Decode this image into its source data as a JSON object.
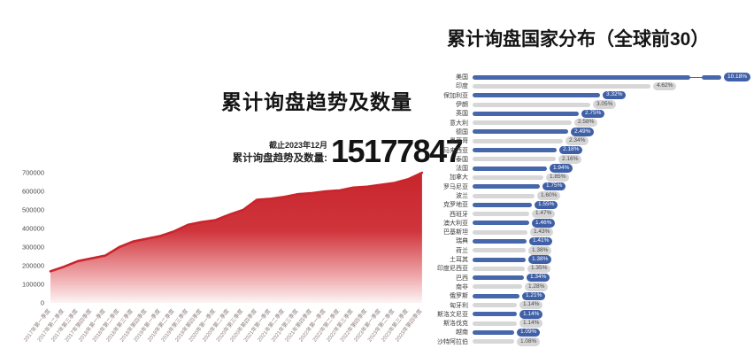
{
  "page": {
    "background": "#ffffff"
  },
  "left_chart": {
    "title": "累计询盘趋势及数量",
    "asof": "截止2023年12月",
    "total_label": "累计询盘趋势及数量:",
    "total_value": "15177847",
    "line_color": "#c9252c",
    "axis_text_color": "#4a4a4a",
    "x_label_color": "#917f7f"
  },
  "right_chart": {
    "title": "累计询盘国家分布（全球前30）",
    "bar_color_primary": "#4767ab",
    "bar_color_secondary": "#d7d7d7"
  },
  "chart_data": [
    {
      "type": "area",
      "title": "累计询盘趋势及数量",
      "x": [
        "2017年第一季度",
        "2017年第二季度",
        "2017年第三季度",
        "2017年第四季度",
        "2018年第一季度",
        "2018年第二季度",
        "2018年第三季度",
        "2018年第四季度",
        "2019年第一季度",
        "2019年第二季度",
        "2019年第三季度",
        "2019年第四季度",
        "2020年第一季度",
        "2020年第二季度",
        "2020年第三季度",
        "2020年第四季度",
        "2021年第一季度",
        "2021年第二季度",
        "2021年第三季度",
        "2021年第四季度",
        "2022年第一季度",
        "2022年第二季度",
        "2022年第三季度",
        "2022年第四季度",
        "2023年第一季度",
        "2023年第二季度",
        "2023年第三季度",
        "2023年第四季度"
      ],
      "values": [
        170000,
        195000,
        225000,
        240000,
        255000,
        300000,
        330000,
        345000,
        360000,
        385000,
        420000,
        435000,
        445000,
        475000,
        500000,
        555000,
        560000,
        570000,
        585000,
        590000,
        600000,
        605000,
        620000,
        625000,
        635000,
        645000,
        665000,
        700000
      ],
      "ylim": [
        0,
        700000
      ],
      "yticks": [
        0,
        100000,
        200000,
        300000,
        400000,
        500000,
        600000,
        700000
      ],
      "grid": false,
      "legend": false,
      "line_color": "#c9252c",
      "fill": "vertical gradient red to white"
    },
    {
      "type": "bar",
      "orientation": "horizontal",
      "title": "累计询盘国家分布（全球前30）",
      "categories": [
        "美国",
        "印度",
        "保加利亚",
        "伊朗",
        "英国",
        "意大利",
        "德国",
        "墨西哥",
        "马来西亚",
        "泰国",
        "法国",
        "加拿大",
        "罗马尼亚",
        "波兰",
        "克罗地亚",
        "西班牙",
        "澳大利亚",
        "巴基斯坦",
        "瑞典",
        "荷兰",
        "土耳其",
        "印度尼西亚",
        "巴西",
        "南非",
        "俄罗斯",
        "匈牙利",
        "斯洛文尼亚",
        "斯洛伐克",
        "越南",
        "沙特阿拉伯"
      ],
      "values": [
        10.18,
        4.62,
        3.32,
        3.05,
        2.75,
        2.58,
        2.49,
        2.34,
        2.18,
        2.16,
        1.94,
        1.85,
        1.75,
        1.6,
        1.55,
        1.47,
        1.46,
        1.43,
        1.41,
        1.38,
        1.38,
        1.35,
        1.34,
        1.28,
        1.21,
        1.14,
        1.14,
        1.14,
        1.09,
        1.08
      ],
      "labels": [
        "10.18%",
        "4.62%",
        "3.32%",
        "3.05%",
        "2.75%",
        "2.58%",
        "2.49%",
        "2.34%",
        "2.18%",
        "2.16%",
        "1.94%",
        "1.85%",
        "1.75%",
        "1.60%",
        "1.55%",
        "1.47%",
        "1.46%",
        "1.43%",
        "1.41%",
        "1.38%",
        "1.38%",
        "1.35%",
        "1.34%",
        "1.28%",
        "1.21%",
        "1.14%",
        "1.14%",
        "1.14%",
        "1.09%",
        "1.08%"
      ],
      "broken_axis_first_bar": true,
      "grid": false,
      "legend": false
    }
  ]
}
